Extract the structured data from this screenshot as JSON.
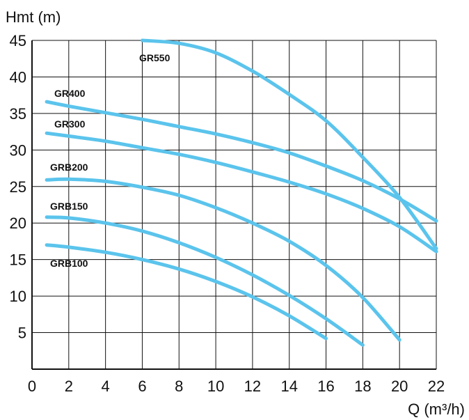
{
  "chart_data": {
    "type": "line",
    "ylabel": "Hmt (m)",
    "xlabel": "Q (m³/h)",
    "xlim": [
      0,
      22
    ],
    "ylim": [
      0,
      45
    ],
    "xticks": [
      0,
      2,
      4,
      6,
      8,
      10,
      12,
      14,
      16,
      18,
      20,
      22
    ],
    "yticks": [
      5,
      10,
      15,
      20,
      25,
      30,
      35,
      40,
      45
    ],
    "grid": true,
    "line_color": "#5bc4ec",
    "series": [
      {
        "name": "GR550",
        "x": [
          6,
          8,
          10,
          12,
          14,
          16,
          18,
          20,
          22
        ],
        "y": [
          45,
          44.6,
          43.3,
          40.8,
          37.6,
          34,
          29,
          23.5,
          16.5
        ]
      },
      {
        "name": "GR400",
        "x": [
          0.8,
          2,
          4,
          6,
          8,
          10,
          12,
          14,
          16,
          18,
          20,
          22
        ],
        "y": [
          36.6,
          36,
          35.1,
          34.2,
          33.2,
          32.2,
          31,
          29.6,
          27.8,
          25.8,
          23.3,
          20.3
        ]
      },
      {
        "name": "GR300",
        "x": [
          0.8,
          2,
          4,
          6,
          8,
          10,
          12,
          14,
          16,
          18,
          20,
          22
        ],
        "y": [
          32.3,
          31.9,
          31.2,
          30.3,
          29.4,
          28.3,
          27,
          25.6,
          24,
          22,
          19.5,
          16.1
        ]
      },
      {
        "name": "GRB200",
        "x": [
          0.8,
          2,
          4,
          6,
          8,
          10,
          12,
          14,
          16,
          18,
          20
        ],
        "y": [
          25.9,
          26,
          25.7,
          24.9,
          23.8,
          22.1,
          20,
          17.5,
          14.2,
          9.8,
          4
        ]
      },
      {
        "name": "GRB150",
        "x": [
          0.8,
          2,
          4,
          6,
          8,
          10,
          12,
          14,
          16,
          18
        ],
        "y": [
          20.8,
          20.7,
          20,
          18.9,
          17.3,
          15.3,
          12.9,
          10.1,
          6.9,
          3.3
        ]
      },
      {
        "name": "GRB100",
        "x": [
          0.8,
          2,
          4,
          6,
          8,
          10,
          12,
          14,
          16
        ],
        "y": [
          17,
          16.7,
          16,
          15,
          13.7,
          12,
          9.9,
          7.3,
          4.2
        ]
      }
    ]
  }
}
